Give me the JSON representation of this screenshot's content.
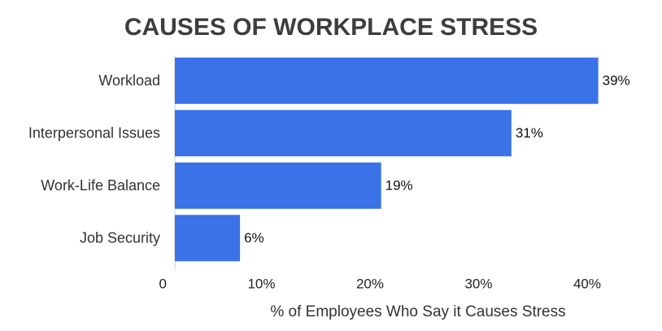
{
  "chart_data": {
    "type": "bar",
    "orientation": "horizontal",
    "title": "CAUSES OF WORKPLACE STRESS",
    "x_label": "% of Employees Who Say it Causes Stress",
    "categories": [
      "Workload",
      "Interpersonal Issues",
      "Work-Life Balance",
      "Job Security"
    ],
    "values": [
      39,
      31,
      19,
      6
    ],
    "value_labels": [
      "39%",
      "31%",
      "19%",
      "6%"
    ],
    "color": "#3a72e8",
    "xlim": [
      0,
      40
    ],
    "xticks": [
      0,
      {
        "value": 10,
        "label": "10%"
      },
      {
        "value": 20,
        "label": "20%"
      },
      {
        "value": 30,
        "label": "30%"
      },
      {
        "value": 40,
        "label": "40%"
      }
    ]
  }
}
